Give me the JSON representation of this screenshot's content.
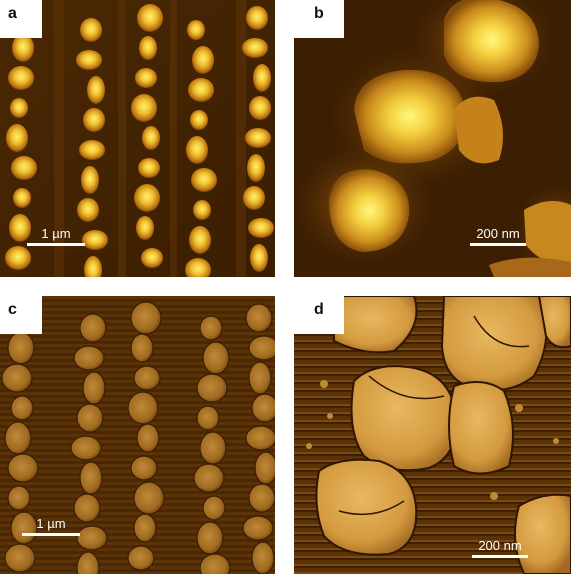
{
  "panels": [
    {
      "letter": "a",
      "scale_label": "1 µm"
    },
    {
      "letter": "b",
      "scale_label": "200 nm"
    },
    {
      "letter": "c",
      "scale_label": "1 µm"
    },
    {
      "letter": "d",
      "scale_label": "200 nm"
    }
  ],
  "colors": {
    "background_dark": "#3a1e00",
    "island_mid": "#c98a1a",
    "island_bright": "#ffe860",
    "phase_light": "#e0b055",
    "phase_dark": "#4a2806",
    "scalebar": "#ffffff"
  }
}
